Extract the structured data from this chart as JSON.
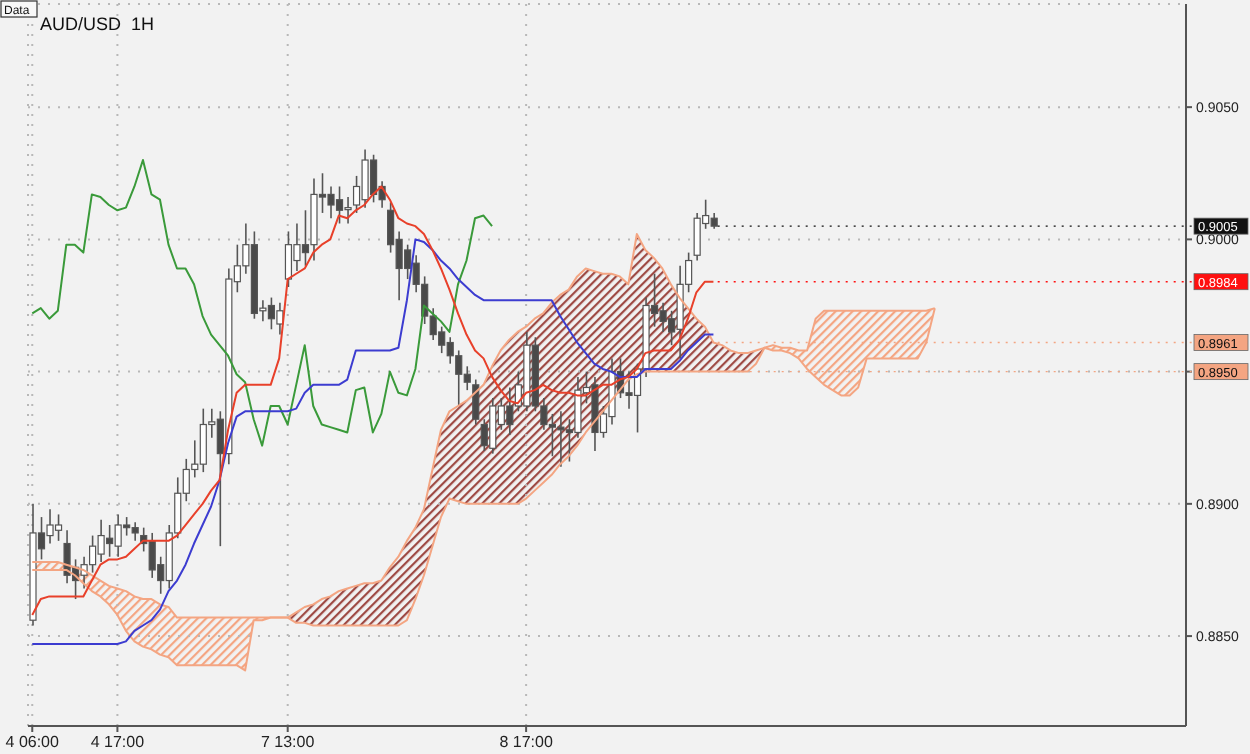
{
  "chart_data": {
    "type": "candlestick",
    "title": "AUD/USD  1H",
    "categories": [
      "4 06:00",
      null,
      null,
      null,
      null,
      null,
      null,
      null,
      null,
      null,
      "4 17:00",
      null,
      null,
      null,
      null,
      null,
      null,
      null,
      null,
      null,
      null,
      null,
      null,
      null,
      null,
      null,
      null,
      null,
      null,
      null,
      "7 13:00",
      null,
      null,
      null,
      null,
      null,
      null,
      null,
      null,
      null,
      null,
      null,
      null,
      null,
      null,
      null,
      null,
      null,
      null,
      null,
      null,
      null,
      null,
      null,
      null,
      null,
      null,
      null,
      "8 17:00",
      null,
      null,
      null,
      null,
      null,
      null,
      null,
      null,
      null,
      null,
      null,
      null,
      null,
      null,
      null,
      null,
      null,
      null,
      null,
      null,
      null,
      null,
      null,
      null,
      null,
      null,
      null,
      null,
      null,
      null,
      null,
      null,
      null,
      null,
      null,
      null,
      null,
      null,
      null,
      null,
      null,
      null,
      null,
      null,
      null,
      null,
      null,
      null,
      null,
      null,
      null,
      null,
      null,
      null,
      null,
      null,
      null,
      null,
      null,
      null,
      null,
      null,
      null,
      null,
      null,
      null,
      null,
      null,
      null,
      null,
      null,
      null,
      null,
      null,
      null,
      null,
      null
    ],
    "ohlc": [
      [
        0.8856,
        0.89,
        0.8854,
        0.8889
      ],
      [
        0.8889,
        0.8895,
        0.8879,
        0.8883
      ],
      [
        0.8888,
        0.8898,
        0.8885,
        0.8892
      ],
      [
        0.889,
        0.8896,
        0.8886,
        0.8892
      ],
      [
        0.8885,
        0.889,
        0.887,
        0.8873
      ],
      [
        0.8876,
        0.8879,
        0.8864,
        0.8871
      ],
      [
        0.8873,
        0.888,
        0.8868,
        0.8877
      ],
      [
        0.8877,
        0.8888,
        0.8874,
        0.8884
      ],
      [
        0.8881,
        0.8894,
        0.8878,
        0.8888
      ],
      [
        0.8887,
        0.8892,
        0.888,
        0.8885
      ],
      [
        0.8884,
        0.8896,
        0.888,
        0.8892
      ],
      [
        0.8892,
        0.8895,
        0.8888,
        0.8891
      ],
      [
        0.8891,
        0.8893,
        0.8886,
        0.8889
      ],
      [
        0.8888,
        0.8891,
        0.8882,
        0.8885
      ],
      [
        0.8886,
        0.8889,
        0.8872,
        0.8875
      ],
      [
        0.8877,
        0.888,
        0.8866,
        0.8871
      ],
      [
        0.8871,
        0.8892,
        0.8868,
        0.8889
      ],
      [
        0.8889,
        0.891,
        0.8887,
        0.8904
      ],
      [
        0.8904,
        0.8917,
        0.8901,
        0.8913
      ],
      [
        0.8913,
        0.8924,
        0.891,
        0.8915
      ],
      [
        0.8915,
        0.8936,
        0.8912,
        0.893
      ],
      [
        0.893,
        0.8936,
        0.8925,
        0.8931
      ],
      [
        0.8932,
        0.8935,
        0.8884,
        0.8919
      ],
      [
        0.8919,
        0.8989,
        0.8915,
        0.8985
      ],
      [
        0.8984,
        0.8998,
        0.898,
        0.899
      ],
      [
        0.899,
        0.9006,
        0.8987,
        0.8998
      ],
      [
        0.8998,
        0.9003,
        0.897,
        0.8972
      ],
      [
        0.8973,
        0.8977,
        0.8969,
        0.8974
      ],
      [
        0.8975,
        0.8978,
        0.8966,
        0.897
      ],
      [
        0.8968,
        0.8976,
        0.8964,
        0.8973
      ],
      [
        0.8985,
        0.9003,
        0.8982,
        0.8998
      ],
      [
        0.8992,
        0.9006,
        0.8988,
        0.8998
      ],
      [
        0.8998,
        0.9011,
        0.899,
        0.8995
      ],
      [
        0.8998,
        0.9023,
        0.8992,
        0.9017
      ],
      [
        0.9017,
        0.9025,
        0.901,
        0.9016
      ],
      [
        0.9017,
        0.902,
        0.9008,
        0.9013
      ],
      [
        0.9015,
        0.902,
        0.9006,
        0.9011
      ],
      [
        0.9012,
        0.9016,
        0.9006,
        0.9012
      ],
      [
        0.9013,
        0.9024,
        0.901,
        0.902
      ],
      [
        0.9015,
        0.9034,
        0.9012,
        0.903
      ],
      [
        0.903,
        0.9032,
        0.9014,
        0.9017
      ],
      [
        0.902,
        0.9022,
        0.9012,
        0.9015
      ],
      [
        0.9011,
        0.9014,
        0.8995,
        0.8998
      ],
      [
        0.9,
        0.9003,
        0.8977,
        0.8989
      ],
      [
        0.8996,
        0.8998,
        0.8985,
        0.8989
      ],
      [
        0.8991,
        0.8994,
        0.898,
        0.8983
      ],
      [
        0.8983,
        0.8986,
        0.8968,
        0.8971
      ],
      [
        0.8971,
        0.8974,
        0.8962,
        0.8964
      ],
      [
        0.8965,
        0.8967,
        0.8957,
        0.896
      ],
      [
        0.8961,
        0.8963,
        0.8953,
        0.8956
      ],
      [
        0.8956,
        0.8958,
        0.8937,
        0.8949
      ],
      [
        0.8949,
        0.8952,
        0.8943,
        0.8946
      ],
      [
        0.8945,
        0.8947,
        0.893,
        0.8932
      ],
      [
        0.893,
        0.8932,
        0.892,
        0.8922
      ],
      [
        0.8921,
        0.894,
        0.8919,
        0.8937
      ],
      [
        0.893,
        0.894,
        0.8928,
        0.8937
      ],
      [
        0.8937,
        0.8944,
        0.8926,
        0.893
      ],
      [
        0.8937,
        0.895,
        0.8935,
        0.8945
      ],
      [
        0.8937,
        0.8965,
        0.8935,
        0.896
      ],
      [
        0.896,
        0.8963,
        0.8935,
        0.8937
      ],
      [
        0.8937,
        0.894,
        0.8928,
        0.893
      ],
      [
        0.893,
        0.8934,
        0.8918,
        0.8929
      ],
      [
        0.8929,
        0.8935,
        0.8914,
        0.8928
      ],
      [
        0.8928,
        0.8932,
        0.8916,
        0.8927
      ],
      [
        0.8927,
        0.8948,
        0.8925,
        0.8943
      ],
      [
        0.8942,
        0.895,
        0.8938,
        0.8944
      ],
      [
        0.8945,
        0.8948,
        0.892,
        0.8927
      ],
      [
        0.8927,
        0.8937,
        0.8925,
        0.8934
      ],
      [
        0.8933,
        0.8955,
        0.893,
        0.895
      ],
      [
        0.895,
        0.8955,
        0.894,
        0.8942
      ],
      [
        0.8942,
        0.895,
        0.8936,
        0.8941
      ],
      [
        0.8941,
        0.8953,
        0.8927,
        0.8951
      ],
      [
        0.8951,
        0.8978,
        0.8948,
        0.8975
      ],
      [
        0.8975,
        0.8987,
        0.8967,
        0.8972
      ],
      [
        0.8973,
        0.8976,
        0.8965,
        0.8969
      ],
      [
        0.897,
        0.8973,
        0.896,
        0.8965
      ],
      [
        0.8966,
        0.899,
        0.8955,
        0.8983
      ],
      [
        0.8983,
        0.8995,
        0.898,
        0.8992
      ],
      [
        0.8994,
        0.901,
        0.8992,
        0.9008
      ],
      [
        0.9006,
        0.9015,
        0.9004,
        0.9009
      ],
      [
        0.9008,
        0.901,
        0.9004,
        0.9005
      ],
      null,
      null,
      null,
      null,
      null,
      null,
      null,
      null,
      null,
      null,
      null,
      null,
      null,
      null,
      null,
      null,
      null,
      null,
      null,
      null,
      null,
      null,
      null,
      null,
      null,
      null,
      null,
      null,
      null,
      null,
      null,
      null,
      null,
      null,
      null,
      null,
      null,
      null,
      null,
      null,
      null,
      null,
      null,
      null,
      null,
      null,
      null,
      null,
      null,
      null,
      null,
      null,
      null,
      null,
      null
    ],
    "series": [
      {
        "type": "line",
        "color": "#f4a582",
        "values": [
          0.8878,
          0.8878,
          0.8878,
          0.8878,
          0.8877,
          0.8876,
          0.8875,
          0.8873,
          0.8871,
          0.8869,
          0.8868,
          0.8867,
          0.8865,
          0.8864,
          0.8864,
          0.8862,
          0.8861,
          0.8857,
          0.8857,
          0.8857,
          0.8857,
          0.8857,
          0.8857,
          0.8857,
          0.8857,
          0.8857,
          0.8857,
          0.8857,
          0.8857,
          0.8857,
          0.8857,
          0.8855,
          0.8855,
          0.8854,
          0.8854,
          0.8854,
          0.8854,
          0.8854,
          0.8854,
          0.8854,
          0.8854,
          0.8854,
          0.8854,
          0.8854,
          0.8856,
          0.8864,
          0.8873,
          0.8884,
          0.8895,
          0.8902,
          0.8901,
          0.89,
          0.89,
          0.89,
          0.89,
          0.89,
          0.89,
          0.89,
          0.8902,
          0.8905,
          0.8908,
          0.8911,
          0.8915,
          0.8918,
          0.8922,
          0.8927,
          0.8931,
          0.8935,
          0.8939,
          0.8943,
          0.8947,
          0.8949,
          0.895,
          0.895,
          0.895,
          0.895,
          0.895,
          0.895,
          0.895,
          0.895,
          0.895,
          0.895,
          0.895,
          0.895,
          0.895,
          0.8953,
          0.8959,
          0.896,
          0.8959,
          0.8959,
          0.8958,
          0.8958,
          0.897,
          0.8973,
          0.8973,
          0.8973,
          0.8973,
          0.8973,
          0.8973,
          0.8973,
          0.8973,
          0.8973,
          0.8973,
          0.8973,
          0.8973,
          0.8973,
          0.8974,
          null,
          null,
          null,
          null,
          null,
          null,
          null,
          null,
          null,
          null,
          null,
          null,
          null,
          null,
          null,
          null,
          null,
          null,
          null,
          null,
          null,
          null,
          null,
          null,
          null,
          null,
          null,
          null,
          null
        ]
      },
      {
        "type": "line",
        "color": "#f4a582",
        "values": [
          0.8875,
          0.8875,
          0.8875,
          0.8875,
          0.8875,
          0.8873,
          0.887,
          0.8867,
          0.8865,
          0.8862,
          0.8858,
          0.8852,
          0.8848,
          0.8846,
          0.8845,
          0.8843,
          0.8842,
          0.8839,
          0.8839,
          0.8839,
          0.8839,
          0.8839,
          0.8839,
          0.8839,
          0.8839,
          0.8837,
          0.8856,
          0.8856,
          0.8857,
          0.8857,
          0.8857,
          0.8859,
          0.8861,
          0.8862,
          0.8864,
          0.8865,
          0.8867,
          0.8868,
          0.8869,
          0.887,
          0.887,
          0.8871,
          0.8876,
          0.888,
          0.8886,
          0.8891,
          0.8898,
          0.8913,
          0.8928,
          0.8935,
          0.8937,
          0.8939,
          0.8942,
          0.8945,
          0.8952,
          0.8958,
          0.8962,
          0.8965,
          0.8967,
          0.897,
          0.8972,
          0.8976,
          0.8979,
          0.8981,
          0.8986,
          0.8989,
          0.8988,
          0.8987,
          0.8987,
          0.8986,
          0.8983,
          0.9002,
          0.8996,
          0.8993,
          0.8989,
          0.8983,
          0.8978,
          0.8974,
          0.897,
          0.8967,
          0.8961,
          0.896,
          0.8958,
          0.8957,
          0.8957,
          0.8958,
          0.8959,
          0.8958,
          0.8958,
          0.8957,
          0.8955,
          0.8951,
          0.8948,
          0.8945,
          0.8943,
          0.8941,
          0.8941,
          0.8944,
          0.8955,
          0.8955,
          0.8955,
          0.8955,
          0.8955,
          0.8955,
          0.8955,
          0.8961,
          0.8974,
          null,
          null,
          null,
          null,
          null,
          null,
          null,
          null,
          null,
          null,
          null,
          null,
          null,
          null,
          null,
          null,
          null,
          null,
          null,
          null,
          null,
          null,
          null,
          null,
          null,
          null,
          null,
          null,
          null
        ]
      },
      {
        "type": "line",
        "color": "#3a9a3a",
        "values": [
          0.8972,
          0.8974,
          0.897,
          0.8973,
          0.8998,
          0.8998,
          0.8995,
          0.9017,
          0.9016,
          0.9013,
          0.9011,
          0.9012,
          0.902,
          0.903,
          0.9017,
          0.9015,
          0.8998,
          0.8989,
          0.8989,
          0.8983,
          0.8971,
          0.8964,
          0.896,
          0.8956,
          0.8949,
          0.8946,
          0.8932,
          0.8922,
          0.8937,
          0.8937,
          0.893,
          0.8945,
          0.896,
          0.8937,
          0.893,
          0.8929,
          0.8928,
          0.8927,
          0.8943,
          0.8944,
          0.8927,
          0.8934,
          0.895,
          0.8942,
          0.8941,
          0.8951,
          0.8975,
          0.8972,
          0.8969,
          0.8965,
          0.8983,
          0.8992,
          0.9008,
          0.9009,
          0.9005,
          null,
          null,
          null,
          null,
          null,
          null,
          null,
          null,
          null,
          null,
          null,
          null,
          null,
          null,
          null,
          null,
          null,
          null,
          null,
          null,
          null,
          null,
          null,
          null,
          null,
          null,
          null,
          null,
          null,
          null,
          null,
          null,
          null,
          null,
          null,
          null,
          null,
          null,
          null,
          null,
          null,
          null,
          null,
          null,
          null,
          null,
          null,
          null,
          null,
          null,
          null,
          null,
          null,
          null,
          null,
          null,
          null,
          null,
          null,
          null,
          null,
          null,
          null,
          null,
          null,
          null,
          null,
          null,
          null,
          null,
          null,
          null,
          null,
          null,
          null,
          null,
          null,
          null,
          null,
          null,
          null
        ]
      },
      {
        "type": "line",
        "color": "#3c3cd0",
        "values": [
          0.8847,
          0.8847,
          0.8847,
          0.8847,
          0.8847,
          0.8847,
          0.8847,
          0.8847,
          0.8847,
          0.8847,
          0.8847,
          0.8848,
          0.8852,
          0.8854,
          0.8856,
          0.886,
          0.8867,
          0.8871,
          0.8877,
          0.8885,
          0.8892,
          0.8899,
          0.8909,
          0.8923,
          0.8933,
          0.8935,
          0.8935,
          0.8935,
          0.8935,
          0.8935,
          0.8935,
          0.8936,
          0.8942,
          0.8945,
          0.8945,
          0.8945,
          0.8945,
          0.8947,
          0.8958,
          0.8958,
          0.8958,
          0.8958,
          0.8958,
          0.8959,
          0.8977,
          0.9,
          0.8999,
          0.8996,
          0.8992,
          0.8989,
          0.8985,
          0.8982,
          0.8979,
          0.8977,
          0.8977,
          0.8977,
          0.8977,
          0.8977,
          0.8977,
          0.8977,
          0.8977,
          0.8977,
          0.8971,
          0.8966,
          0.8961,
          0.8957,
          0.8953,
          0.8951,
          0.895,
          0.8948,
          0.8948,
          0.8948,
          0.8951,
          0.8951,
          0.8951,
          0.8951,
          0.8954,
          0.8958,
          0.8961,
          0.8964,
          0.8964,
          null,
          null,
          null,
          null,
          null,
          null,
          null,
          null,
          null,
          null,
          null,
          null,
          null,
          null,
          null,
          null,
          null,
          null,
          null,
          null,
          null,
          null,
          null,
          null,
          null,
          null,
          null,
          null,
          null,
          null,
          null,
          null,
          null,
          null,
          null,
          null,
          null,
          null,
          null,
          null,
          null,
          null,
          null,
          null,
          null,
          null,
          null,
          null,
          null,
          null,
          null,
          null,
          null,
          null,
          null
        ]
      },
      {
        "type": "line",
        "color": "#e8402a",
        "values": [
          0.8858,
          0.8864,
          0.8865,
          0.8865,
          0.8865,
          0.8865,
          0.8865,
          0.8871,
          0.8877,
          0.8879,
          0.8879,
          0.888,
          0.8883,
          0.8886,
          0.8886,
          0.8886,
          0.8886,
          0.8888,
          0.8892,
          0.8896,
          0.89,
          0.8905,
          0.8909,
          0.8928,
          0.8942,
          0.8945,
          0.8945,
          0.8945,
          0.8945,
          0.8955,
          0.8985,
          0.8987,
          0.8989,
          0.8995,
          0.8998,
          0.9,
          0.9009,
          0.9008,
          0.9011,
          0.9013,
          0.9017,
          0.902,
          0.9015,
          0.9008,
          0.9006,
          0.9005,
          0.9002,
          0.8996,
          0.8989,
          0.8981,
          0.8972,
          0.8964,
          0.8958,
          0.8955,
          0.8948,
          0.8943,
          0.8939,
          0.8938,
          0.8942,
          0.8943,
          0.8945,
          0.8943,
          0.8942,
          0.8942,
          0.8941,
          0.8941,
          0.8943,
          0.8945,
          0.8945,
          0.8947,
          0.8948,
          0.8951,
          0.8957,
          0.8958,
          0.8958,
          0.8958,
          0.8962,
          0.897,
          0.898,
          0.8984,
          0.8984,
          null,
          null,
          null,
          null,
          null,
          null,
          null,
          null,
          null,
          null,
          null,
          null,
          null,
          null,
          null,
          null,
          null,
          null,
          null,
          null,
          null,
          null,
          null,
          null,
          null,
          null,
          null,
          null,
          null,
          null,
          null,
          null,
          null,
          null,
          null,
          null,
          null,
          null,
          null,
          null,
          null,
          null,
          null,
          null,
          null,
          null,
          null,
          null,
          null,
          null,
          null,
          null,
          null,
          null,
          null
        ]
      }
    ],
    "ylim": [
      0.8816,
      0.9089
    ],
    "yticks": [
      {
        "value": 0.885,
        "label": "0.8850"
      },
      {
        "value": 0.89,
        "label": "0.8900"
      },
      {
        "value": 0.895,
        "label": "0.8950"
      },
      {
        "value": 0.9,
        "label": "0.9000"
      },
      {
        "value": 0.905,
        "label": "0.9050"
      }
    ],
    "grid": true,
    "ref_lines": [
      {
        "axis": "y",
        "value": 0.9005,
        "label": "0.9005",
        "color": "#111111"
      },
      {
        "axis": "y",
        "value": 0.8984,
        "label": "0.8984",
        "color": "#ff1010"
      },
      {
        "axis": "y",
        "value": 0.8961,
        "label": "0.8961",
        "color": "#f4a582"
      },
      {
        "axis": "y",
        "value": 0.895,
        "label": "0.8950",
        "color": "#f4a582"
      }
    ],
    "annotations": [
      "Data"
    ]
  }
}
